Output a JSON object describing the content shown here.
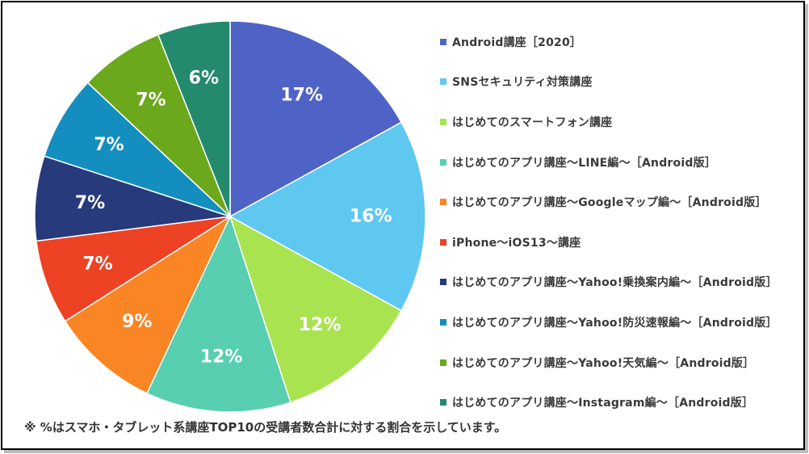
{
  "chart_data": {
    "type": "pie",
    "categories": [
      "Android講座［2020］",
      "SNSセキュリティ対策講座",
      "はじめてのスマートフォン講座",
      "はじめてのアプリ講座～LINE編～［Android版］",
      "はじめてのアプリ講座～Googleマップ編～［Android版］",
      "iPhone～iOS13～講座",
      "はじめてのアプリ講座～Yahoo!乗換案内編～［Android版］",
      "はじめてのアプリ講座～Yahoo!防災速報編～［Android版］",
      "はじめてのアプリ講座～Yahoo!天気編～［Android版］",
      "はじめてのアプリ講座～Instagram編～［Android版］"
    ],
    "values": [
      17,
      16,
      12,
      12,
      9,
      7,
      7,
      7,
      7,
      6
    ],
    "data_labels": [
      "17%",
      "16%",
      "12%",
      "12%",
      "9%",
      "7%",
      "7%",
      "7%",
      "7%",
      "6%"
    ],
    "colors": [
      "#4f63c6",
      "#5ec8f0",
      "#a9e450",
      "#57cfb0",
      "#f98525",
      "#ee4225",
      "#263a7c",
      "#148ebf",
      "#6ba81c",
      "#238a6e"
    ],
    "legend_position": "right",
    "start_angle_deg": 0,
    "direction": "clockwise"
  },
  "footnote": "※ %はスマホ・タブレット系講座TOP10の受講者数合計に対する割合を示しています。"
}
